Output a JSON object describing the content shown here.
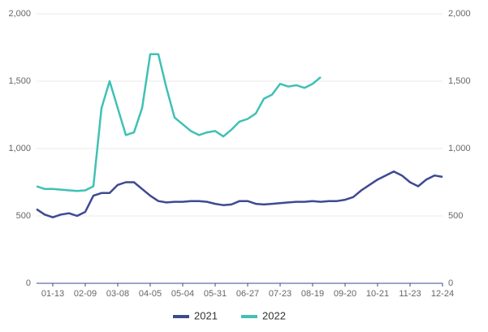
{
  "chart_data": {
    "type": "line",
    "categories": [
      null,
      null,
      "01-13",
      null,
      null,
      null,
      "02-09",
      null,
      null,
      null,
      "03-08",
      null,
      null,
      null,
      "04-05",
      null,
      null,
      null,
      "05-04",
      null,
      null,
      null,
      "05-31",
      null,
      null,
      null,
      "06-27",
      null,
      null,
      null,
      "07-23",
      null,
      null,
      null,
      "08-19",
      null,
      null,
      null,
      "09-20",
      null,
      null,
      null,
      "10-21",
      null,
      null,
      null,
      "11-23",
      null,
      null,
      null,
      "12-24"
    ],
    "series": [
      {
        "name": "2021",
        "color": "#3d4a91",
        "values": [
          550,
          510,
          490,
          510,
          520,
          500,
          530,
          650,
          670,
          670,
          730,
          750,
          750,
          700,
          650,
          610,
          600,
          605,
          605,
          610,
          610,
          605,
          590,
          580,
          585,
          610,
          610,
          590,
          585,
          590,
          595,
          600,
          605,
          605,
          610,
          605,
          610,
          610,
          620,
          640,
          690,
          730,
          770,
          800,
          830,
          800,
          750,
          720,
          770,
          800,
          790
        ]
      },
      {
        "name": "2022",
        "color": "#3fc1b5",
        "values": [
          720,
          700,
          700,
          695,
          690,
          685,
          690,
          720,
          1300,
          1500,
          1300,
          1100,
          1120,
          1300,
          1700,
          1700,
          1450,
          1230,
          1180,
          1130,
          1100,
          1120,
          1130,
          1090,
          1140,
          1200,
          1220,
          1260,
          1370,
          1400,
          1480,
          1460,
          1470,
          1450,
          1480,
          1530,
          null,
          null,
          null,
          null,
          null,
          null,
          null,
          null,
          null,
          null,
          null,
          null,
          null,
          null,
          null
        ]
      }
    ],
    "ylim": [
      0,
      2000
    ],
    "yticks": [
      0,
      500,
      {
        "value": 1000,
        "label": "1,000"
      },
      {
        "value": 1500,
        "label": "1,500"
      },
      {
        "value": 2000,
        "label": "2,000"
      }
    ],
    "y2lim": [
      0,
      2000
    ],
    "y2ticks": [
      0,
      500,
      {
        "value": 1000,
        "label": "1,000"
      },
      {
        "value": 1500,
        "label": "1,500"
      },
      {
        "value": 2000,
        "label": "2,000"
      }
    ],
    "grid": true,
    "legend": "bottom"
  }
}
